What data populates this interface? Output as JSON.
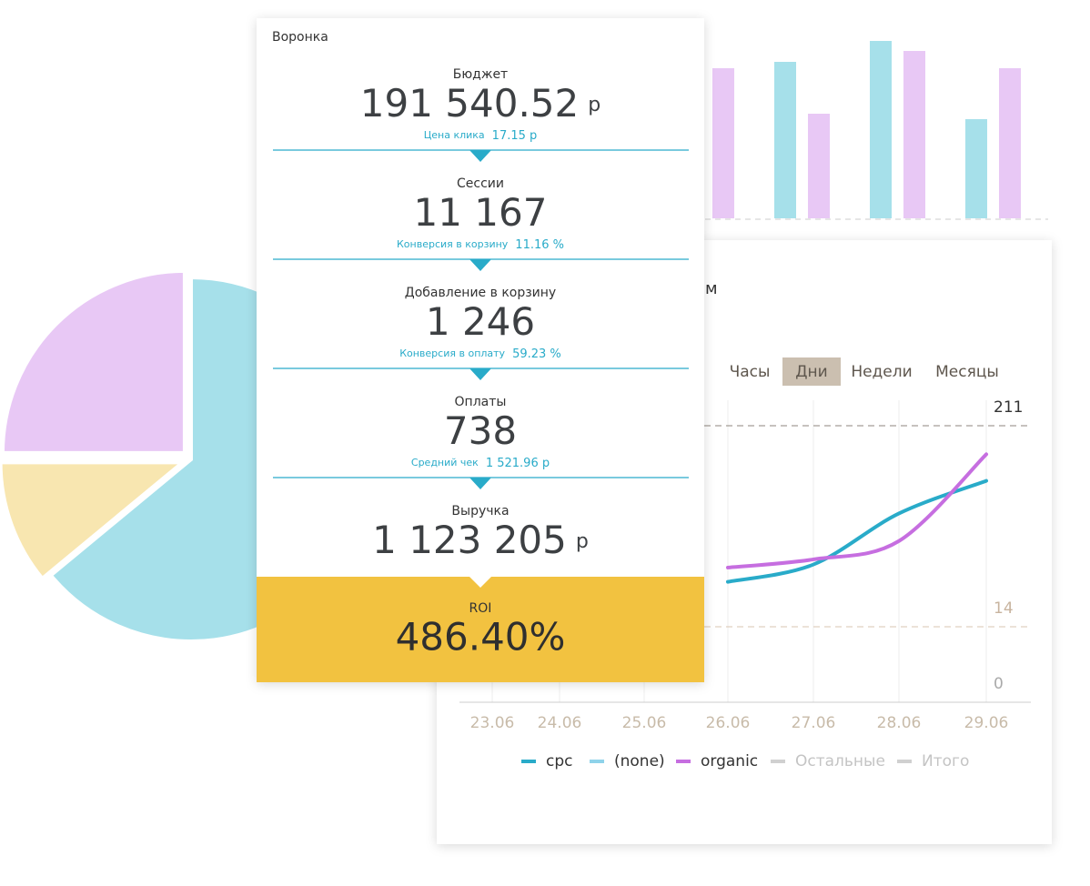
{
  "bar_chart": {
    "type": "bar",
    "ylim": [
      0,
      200
    ],
    "series": [
      {
        "color": "#a6e0ea",
        "values": [
          null,
          172,
          195,
          109
        ]
      },
      {
        "color": "#e8c8f5",
        "values": [
          165,
          115,
          184,
          165
        ]
      }
    ]
  },
  "pie_chart": {
    "type": "pie",
    "values": [
      64,
      11,
      25
    ],
    "colors": [
      "#a6e0ea",
      "#f8e6b0",
      "#e8c8f5"
    ]
  },
  "line_chart": {
    "type": "line",
    "title": "м",
    "tabs": [
      "Часы",
      "Дни",
      "Недели",
      "Месяцы"
    ],
    "active_tab": 1,
    "x": [
      "23.06",
      "24.06",
      "25.06",
      "26.06",
      "27.06",
      "28.06",
      "29.06"
    ],
    "yticks": [
      0,
      14,
      211
    ],
    "series": [
      {
        "name": "cpc",
        "color": "#29abc9",
        "values": [
          null,
          null,
          null,
          58,
          75,
          125,
          157
        ]
      },
      {
        "name": "(none)",
        "color": "#8fd3ea",
        "values": [
          null,
          null,
          null,
          null,
          null,
          null,
          null
        ]
      },
      {
        "name": "organic",
        "color": "#c66ee0",
        "values": [
          null,
          null,
          null,
          72,
          80,
          98,
          183
        ]
      },
      {
        "name": "Остальные",
        "color": "#d0d0d0",
        "values": [
          null,
          null,
          null,
          null,
          null,
          null,
          null
        ]
      },
      {
        "name": "Итого",
        "color": "#d0d0d0",
        "values": [
          null,
          null,
          null,
          null,
          null,
          null,
          null
        ]
      }
    ]
  },
  "funnel": {
    "title": "Воронка",
    "stages": [
      {
        "label": "Бюджет",
        "value": "191 540.52",
        "unit": "р",
        "note_label": "Цена клика",
        "note_value": "17.15 р"
      },
      {
        "label": "Сессии",
        "value": "11 167",
        "note_label": "Конверсия в корзину",
        "note_value": "11.16 %"
      },
      {
        "label": "Добавление в корзину",
        "value": "1 246",
        "note_label": "Конверсия  в оплату",
        "note_value": "59.23 %"
      },
      {
        "label": "Оплаты",
        "value": "738",
        "note_label": "Средний чек",
        "note_value": "1 521.96 р"
      },
      {
        "label": "Выручка",
        "value": "1 123 205",
        "unit": "р"
      }
    ],
    "roi": {
      "label": "ROI",
      "value": "486.40%"
    }
  }
}
